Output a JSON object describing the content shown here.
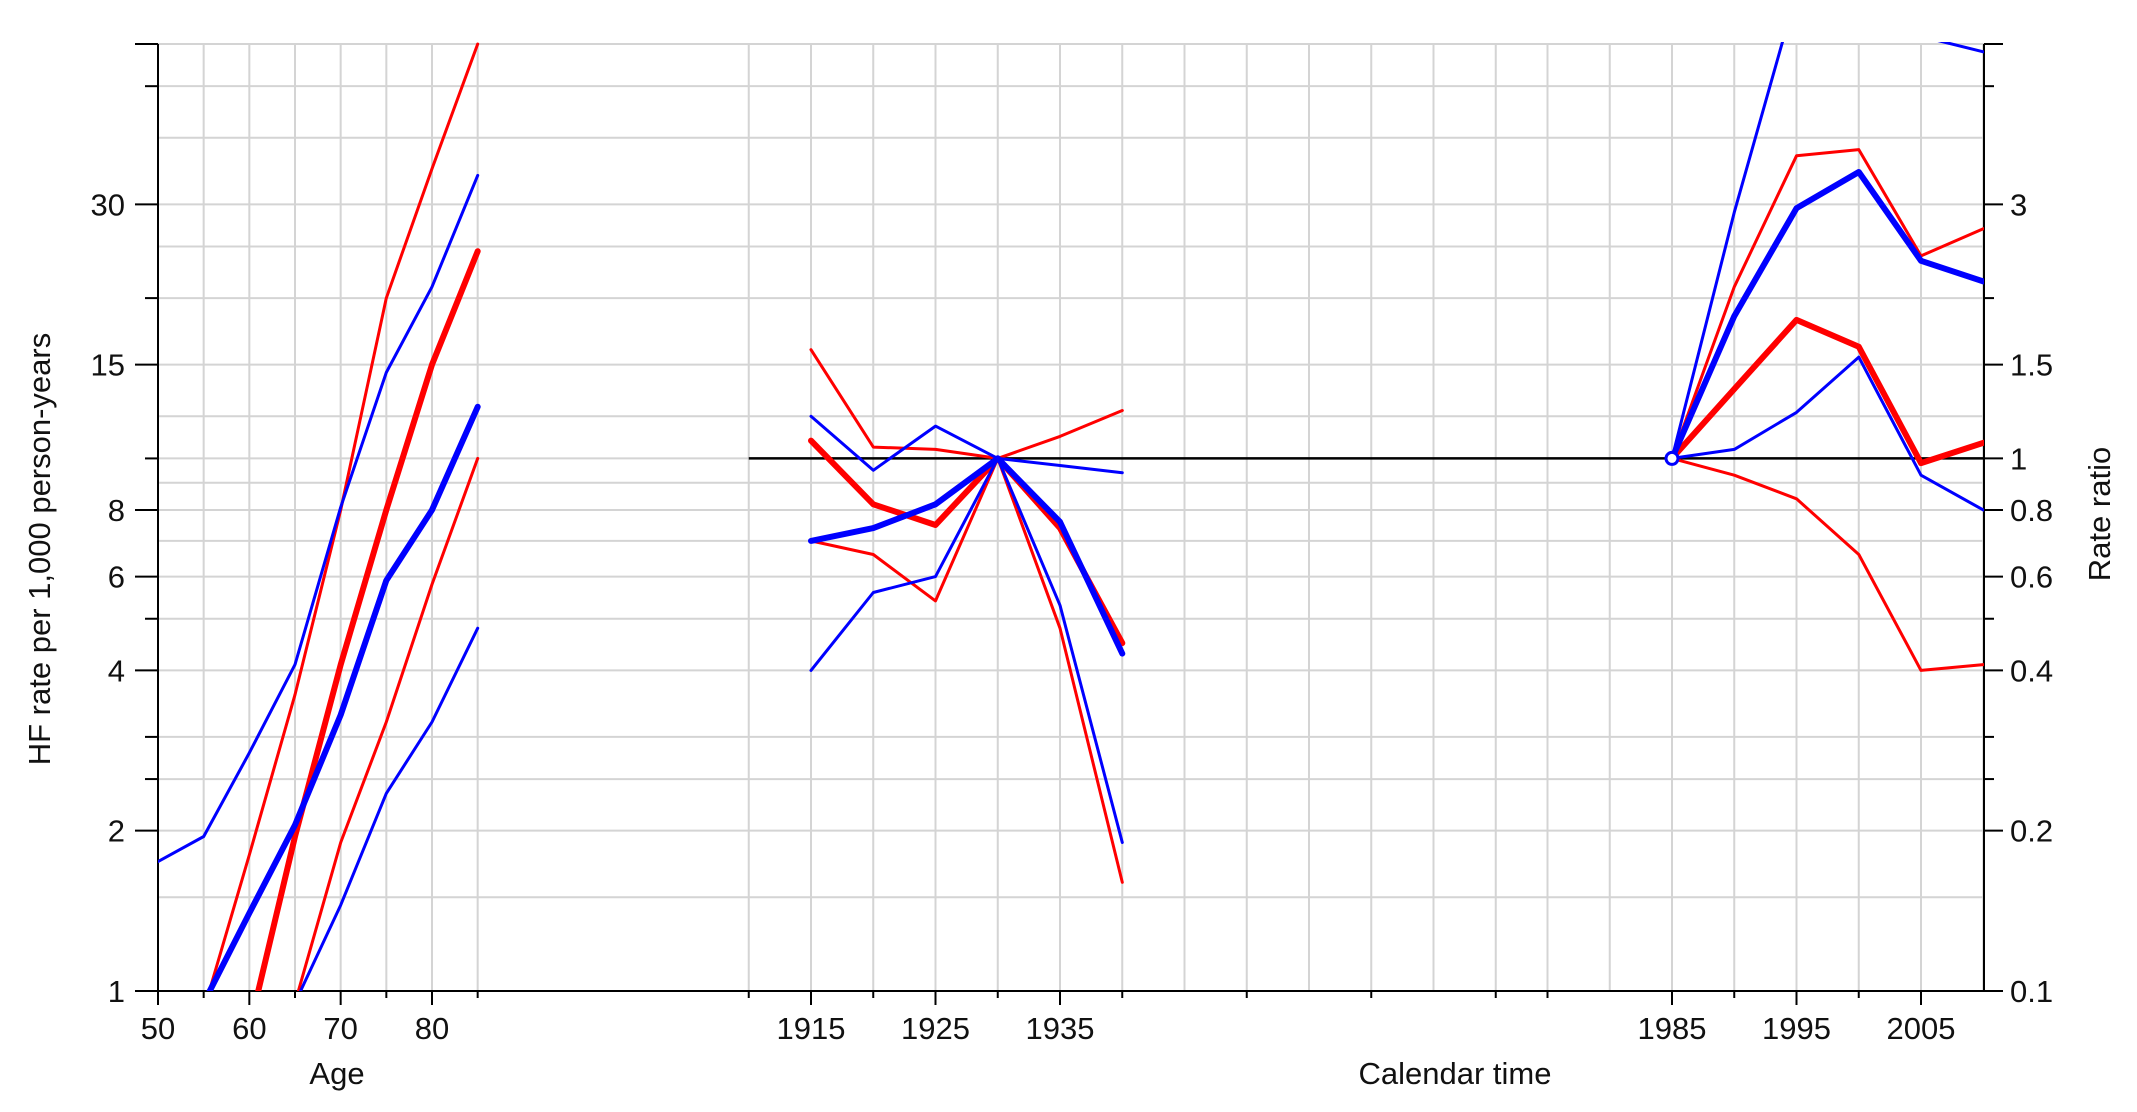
{
  "chart_data": {
    "type": "line",
    "y_scale": "log",
    "ylabel_left": "HF rate per 1,000 person-years",
    "ylabel_right": "Rate ratio",
    "ylim_left": [
      1,
      60
    ],
    "ylim_right": [
      0.1,
      6
    ],
    "left_ticks": [
      "1",
      "2",
      "4",
      "6",
      "8",
      "15",
      "30"
    ],
    "right_ticks": [
      "0.1",
      "0.2",
      "0.4",
      "0.6",
      "0.8",
      "1",
      "1.5",
      "3"
    ],
    "grid": true,
    "reference_line": 1,
    "panels": [
      {
        "xlabel": "Age",
        "xticks": [
          "50",
          "60",
          "70",
          "80"
        ],
        "xlim": [
          50,
          87
        ],
        "series": [
          {
            "color": "#ff0000",
            "width": 3,
            "points": [
              [
                55,
                0.92
              ],
              [
                60,
                1.8
              ],
              [
                65,
                3.6
              ],
              [
                70,
                8
              ],
              [
                75,
                20
              ],
              [
                80,
                35
              ],
              [
                85,
                60
              ]
            ]
          },
          {
            "color": "#ff0000",
            "width": 6,
            "points": [
              [
                60,
                0.85
              ],
              [
                65,
                1.95
              ],
              [
                70,
                4.1
              ],
              [
                75,
                8
              ],
              [
                80,
                15
              ],
              [
                85,
                24.5
              ]
            ]
          },
          {
            "color": "#ff0000",
            "width": 3,
            "points": [
              [
                65,
                0.95
              ],
              [
                70,
                1.9
              ],
              [
                75,
                3.2
              ],
              [
                80,
                5.8
              ],
              [
                85,
                10
              ]
            ]
          },
          {
            "color": "#0000ff",
            "width": 3,
            "points": [
              [
                50,
                1.75
              ],
              [
                55,
                1.95
              ],
              [
                60,
                2.8
              ],
              [
                65,
                4.1
              ],
              [
                70,
                8.1
              ],
              [
                75,
                14.5
              ],
              [
                80,
                21
              ],
              [
                85,
                34
              ]
            ]
          },
          {
            "color": "#0000ff",
            "width": 6,
            "points": [
              [
                55,
                0.95
              ],
              [
                60,
                1.4
              ],
              [
                65,
                2.05
              ],
              [
                70,
                3.3
              ],
              [
                75,
                5.9
              ],
              [
                80,
                8
              ],
              [
                85,
                12.5
              ]
            ]
          },
          {
            "color": "#0000ff",
            "width": 3,
            "points": [
              [
                65,
                0.95
              ],
              [
                70,
                1.45
              ],
              [
                75,
                2.35
              ],
              [
                80,
                3.2
              ],
              [
                85,
                4.8
              ]
            ]
          }
        ]
      },
      {
        "xlabel": "Calendar time",
        "xticks": [
          "1915",
          "1925",
          "1935",
          "1985",
          "1995",
          "2005"
        ],
        "segments": [
          {
            "xlim": [
              1910,
              1940
            ],
            "series": [
              {
                "color": "#ff0000",
                "width": 3,
                "points": [
                  [
                    1915,
                    1.6
                  ],
                  [
                    1920,
                    1.05
                  ],
                  [
                    1925,
                    1.04
                  ],
                  [
                    1930,
                    1
                  ],
                  [
                    1935,
                    1.1
                  ],
                  [
                    1940,
                    1.23
                  ]
                ]
              },
              {
                "color": "#ff0000",
                "width": 6,
                "points": [
                  [
                    1915,
                    1.08
                  ],
                  [
                    1920,
                    0.82
                  ],
                  [
                    1925,
                    0.75
                  ],
                  [
                    1930,
                    1
                  ],
                  [
                    1935,
                    0.74
                  ],
                  [
                    1940,
                    0.45
                  ]
                ]
              },
              {
                "color": "#ff0000",
                "width": 3,
                "points": [
                  [
                    1915,
                    0.7
                  ],
                  [
                    1920,
                    0.66
                  ],
                  [
                    1925,
                    0.54
                  ],
                  [
                    1930,
                    1
                  ],
                  [
                    1935,
                    0.48
                  ],
                  [
                    1940,
                    0.16
                  ]
                ]
              },
              {
                "color": "#0000ff",
                "width": 3,
                "points": [
                  [
                    1915,
                    1.2
                  ],
                  [
                    1920,
                    0.95
                  ],
                  [
                    1925,
                    1.15
                  ],
                  [
                    1930,
                    1
                  ],
                  [
                    1935,
                    0.97
                  ],
                  [
                    1940,
                    0.94
                  ]
                ]
              },
              {
                "color": "#0000ff",
                "width": 6,
                "points": [
                  [
                    1915,
                    0.7
                  ],
                  [
                    1920,
                    0.74
                  ],
                  [
                    1925,
                    0.82
                  ],
                  [
                    1930,
                    1
                  ],
                  [
                    1935,
                    0.76
                  ],
                  [
                    1940,
                    0.43
                  ]
                ]
              },
              {
                "color": "#0000ff",
                "width": 3,
                "points": [
                  [
                    1915,
                    0.4
                  ],
                  [
                    1920,
                    0.56
                  ],
                  [
                    1925,
                    0.6
                  ],
                  [
                    1930,
                    1
                  ],
                  [
                    1935,
                    0.53
                  ],
                  [
                    1940,
                    0.19
                  ]
                ]
              }
            ]
          },
          {
            "xlim": [
              1975,
              2010
            ],
            "series": [
              {
                "color": "#ff0000",
                "width": 3,
                "points": [
                  [
                    1985,
                    1
                  ],
                  [
                    1990,
                    2.1
                  ],
                  [
                    1995,
                    3.7
                  ],
                  [
                    2000,
                    3.8
                  ],
                  [
                    2005,
                    2.4
                  ],
                  [
                    2010,
                    2.7
                  ]
                ]
              },
              {
                "color": "#ff0000",
                "width": 6,
                "points": [
                  [
                    1985,
                    1
                  ],
                  [
                    1990,
                    1.35
                  ],
                  [
                    1995,
                    1.82
                  ],
                  [
                    2000,
                    1.62
                  ],
                  [
                    2005,
                    0.98
                  ],
                  [
                    2010,
                    1.07
                  ]
                ]
              },
              {
                "color": "#ff0000",
                "width": 3,
                "points": [
                  [
                    1985,
                    1
                  ],
                  [
                    1990,
                    0.93
                  ],
                  [
                    1995,
                    0.84
                  ],
                  [
                    2000,
                    0.66
                  ],
                  [
                    2005,
                    0.4
                  ],
                  [
                    2010,
                    0.41
                  ]
                ]
              },
              {
                "color": "#0000ff",
                "width": 3,
                "points": [
                  [
                    1985,
                    1
                  ],
                  [
                    1990,
                    2.9
                  ],
                  [
                    1995,
                    7.5
                  ],
                  [
                    2000,
                    9.2
                  ],
                  [
                    2005,
                    6.2
                  ],
                  [
                    2010,
                    5.8
                  ]
                ]
              },
              {
                "color": "#0000ff",
                "width": 6,
                "points": [
                  [
                    1985,
                    1
                  ],
                  [
                    1990,
                    1.85
                  ],
                  [
                    1995,
                    2.95
                  ],
                  [
                    2000,
                    3.45
                  ],
                  [
                    2005,
                    2.35
                  ],
                  [
                    2010,
                    2.15
                  ]
                ]
              },
              {
                "color": "#0000ff",
                "width": 3,
                "points": [
                  [
                    1985,
                    1
                  ],
                  [
                    1990,
                    1.04
                  ],
                  [
                    1995,
                    1.22
                  ],
                  [
                    2000,
                    1.55
                  ],
                  [
                    2005,
                    0.93
                  ],
                  [
                    2010,
                    0.8
                  ]
                ]
              }
            ]
          }
        ]
      }
    ]
  }
}
